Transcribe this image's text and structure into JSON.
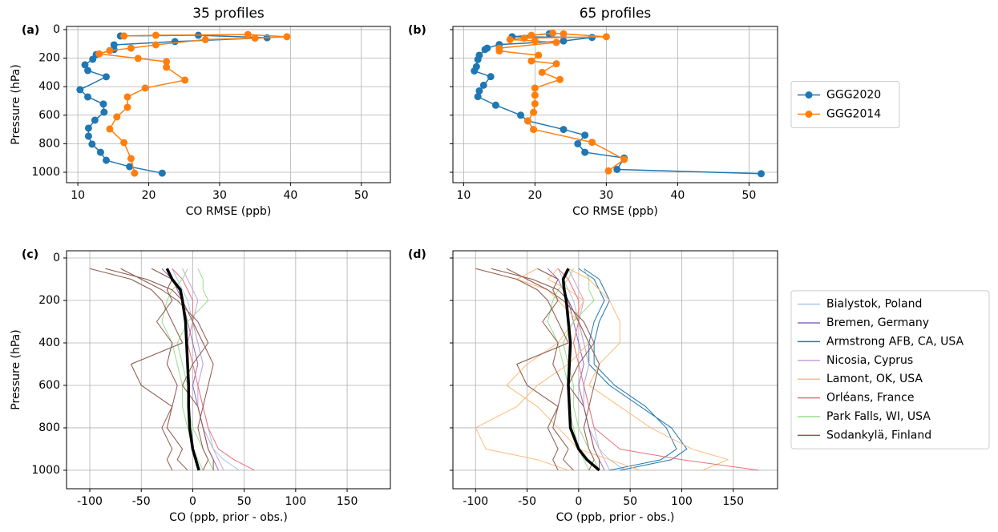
{
  "chart_data": [
    {
      "type": "line",
      "panel_label": "(a)",
      "title": "35 profiles",
      "x_label": "CO RMSE (ppb)",
      "y_label": "Pressure (hPa)",
      "xlim": [
        8.4,
        54.1
      ],
      "ylim": [
        1073,
        -22
      ],
      "xticks": [
        10,
        20,
        30,
        40,
        50
      ],
      "yticks": [
        0,
        200,
        400,
        600,
        800,
        1000
      ],
      "grid": true,
      "markers": true,
      "series": [
        {
          "name": "GGG2020",
          "color": "#1f77b4",
          "values": [
            16.0,
            27.0,
            36.7,
            23.7,
            15.1,
            15.1,
            12.6,
            12.1,
            11.0,
            11.4,
            14.0,
            10.3,
            11.4,
            13.6,
            13.7,
            12.4,
            11.5,
            11.5,
            12.0,
            13.2,
            14.0,
            17.3,
            21.9
          ],
          "pressure": [
            45,
            40,
            57,
            84,
            107,
            140,
            175,
            208,
            247,
            287,
            331,
            421,
            472,
            522,
            579,
            635,
            691,
            747,
            803,
            860,
            916,
            961,
            1006
          ]
        },
        {
          "name": "GGG2014",
          "color": "#ff7f0e",
          "values": [
            16.5,
            21.0,
            34.0,
            39.5,
            35.0,
            28.0,
            21.0,
            17.5,
            14.5,
            13.0,
            18.5,
            22.5,
            22.5,
            25.1,
            19.5,
            17.0,
            17.0,
            15.5,
            14.5,
            16.5,
            17.5,
            18.0
          ],
          "pressure": [
            45,
            40,
            35,
            50,
            60,
            70,
            107,
            130,
            147,
            170,
            202,
            225,
            264,
            354,
            410,
            472,
            545,
            612,
            697,
            792,
            904,
            1006
          ]
        }
      ]
    },
    {
      "type": "line",
      "panel_label": "(b)",
      "title": "65 profiles",
      "x_label": "CO RMSE (ppb)",
      "xlim": [
        8.5,
        54.0
      ],
      "ylim": [
        1073,
        -22
      ],
      "xticks": [
        10,
        20,
        30,
        40,
        50
      ],
      "yticks": [
        0,
        200,
        400,
        600,
        800,
        1000
      ],
      "show_ytick_labels": false,
      "grid": true,
      "markers": true,
      "legend": "outside right",
      "series": [
        {
          "name": "GGG2020",
          "color": "#1f77b4",
          "values": [
            22.0,
            16.8,
            28.0,
            24.0,
            15.0,
            13.3,
            13.0,
            12.2,
            12.0,
            11.8,
            11.5,
            13.8,
            12.8,
            12.2,
            12.0,
            14.5,
            18.0,
            19.0,
            24.0,
            27.0,
            26.0,
            27.0,
            32.5,
            31.5,
            51.7
          ],
          "pressure": [
            30,
            50,
            55,
            80,
            105,
            130,
            140,
            180,
            210,
            260,
            290,
            330,
            390,
            430,
            470,
            530,
            600,
            640,
            700,
            740,
            800,
            860,
            900,
            980,
            1010
          ]
        },
        {
          "name": "GGG2014",
          "color": "#ff7f0e",
          "values": [
            19.5,
            22.5,
            24.0,
            30.0,
            18.5,
            16.5,
            20.0,
            23.0,
            15.0,
            15.0,
            20.5,
            19.5,
            23.0,
            21.0,
            23.5,
            20.0,
            20.0,
            20.0,
            19.8,
            19.0,
            19.8,
            28.0,
            32.5,
            30.3
          ],
          "pressure": [
            40,
            25,
            30,
            50,
            60,
            70,
            80,
            90,
            130,
            150,
            180,
            220,
            240,
            300,
            350,
            410,
            460,
            520,
            580,
            640,
            700,
            790,
            910,
            990
          ]
        }
      ]
    },
    {
      "type": "profiles",
      "panel_label": "(c)",
      "x_label": "CO (ppb, prior - obs.)",
      "y_label": "Pressure (hPa)",
      "xlim": [
        -122.6,
        192.0
      ],
      "ylim": [
        1087,
        -34
      ],
      "xticks": [
        -100,
        -50,
        0,
        50,
        100,
        150
      ],
      "yticks": [
        0,
        200,
        400,
        600,
        800,
        1000
      ],
      "grid": true,
      "pressure": [
        50,
        100,
        150,
        200,
        300,
        400,
        500,
        600,
        700,
        800,
        900,
        950,
        1000
      ],
      "series": [
        {
          "name": "Bialystok, Poland",
          "color": "#a9c8e6",
          "profiles": [
            [
              -20,
              -15,
              -10,
              -5,
              0,
              5,
              10,
              5,
              10,
              15,
              20,
              30,
              45
            ]
          ]
        },
        {
          "name": "Bremen, Germany",
          "color": "#9467bd",
          "profiles": [
            [
              -30,
              -20,
              -15,
              -10,
              -5,
              0,
              5,
              0,
              5,
              10,
              15,
              20,
              25
            ]
          ]
        },
        {
          "name": "Nicosia, Cyprus",
          "color": "#c8a2d9",
          "profiles": [
            [
              -10,
              -5,
              0,
              5,
              0,
              5,
              10,
              5,
              5,
              10,
              20,
              25,
              30
            ]
          ]
        },
        {
          "name": "Orléans, France",
          "color": "#e8707a",
          "profiles": [
            [
              -20,
              -10,
              -5,
              0,
              0,
              -5,
              0,
              5,
              10,
              15,
              25,
              40,
              60
            ]
          ]
        },
        {
          "name": "Park Falls, WI, USA",
          "color": "#98df8a",
          "profiles": [
            [
              5,
              10,
              10,
              15,
              -5,
              -15,
              -10,
              -5,
              -5,
              0,
              10,
              15,
              20
            ],
            [
              -5,
              -10,
              -20,
              -25,
              -30,
              -20,
              -15,
              -10,
              -10,
              -5,
              0,
              5,
              10
            ]
          ]
        },
        {
          "name": "Sodankylä, Finland",
          "color": "#8c564b",
          "profiles": [
            [
              -100,
              -60,
              -40,
              -30,
              -20,
              -10,
              -60,
              -50,
              -20,
              -25,
              -10,
              -15,
              -5
            ],
            [
              -70,
              -50,
              -30,
              -15,
              5,
              15,
              0,
              -10,
              5,
              10,
              15,
              20,
              20
            ],
            [
              -40,
              -20,
              -25,
              -20,
              -35,
              -20,
              -25,
              -15,
              -20,
              -30,
              -20,
              -25,
              -20
            ],
            [
              -85,
              -45,
              -20,
              -10,
              0,
              10,
              20,
              15,
              10,
              5,
              10,
              15,
              10
            ]
          ]
        },
        {
          "color": "#000000",
          "line_width": 3.5,
          "profiles": [
            [
              -25,
              -20,
              -12,
              -10,
              -7,
              -6,
              -5,
              -4,
              -4,
              -3,
              0,
              3,
              6
            ]
          ]
        }
      ]
    },
    {
      "type": "profiles",
      "panel_label": "(d)",
      "x_label": "CO (ppb, prior - obs.)",
      "xlim": [
        -122.0,
        193.0
      ],
      "ylim": [
        1087,
        -34
      ],
      "xticks": [
        -100,
        -50,
        0,
        50,
        100,
        150
      ],
      "yticks": [
        0,
        200,
        400,
        600,
        800,
        1000
      ],
      "show_ytick_labels": false,
      "grid": true,
      "legend": "outside right",
      "pressure": [
        50,
        100,
        150,
        200,
        300,
        400,
        500,
        600,
        700,
        800,
        900,
        950,
        1000
      ],
      "series": [
        {
          "name": "Bialystok, Poland",
          "color": "#a9c8e6",
          "profiles": [
            [
              -20,
              -15,
              -10,
              -5,
              0,
              5,
              10,
              5,
              10,
              15,
              20,
              30,
              45
            ]
          ]
        },
        {
          "name": "Bremen, Germany",
          "color": "#9467bd",
          "profiles": [
            [
              -30,
              -20,
              -15,
              -10,
              -5,
              0,
              5,
              0,
              5,
              10,
              15,
              20,
              25
            ]
          ]
        },
        {
          "name": "Armstrong AFB, CA, USA",
          "color": "#1f77b4",
          "profiles": [
            [
              0,
              15,
              20,
              25,
              15,
              10,
              10,
              30,
              60,
              90,
              105,
              90,
              40
            ],
            [
              5,
              20,
              25,
              30,
              20,
              15,
              15,
              35,
              65,
              85,
              95,
              80,
              30
            ]
          ]
        },
        {
          "name": "Nicosia, Cyprus",
          "color": "#c8a2d9",
          "profiles": [
            [
              -10,
              -5,
              0,
              5,
              0,
              5,
              10,
              5,
              5,
              10,
              20,
              25,
              30
            ]
          ]
        },
        {
          "name": "Lamont, OK, USA",
          "color": "#ffbb78",
          "profiles": [
            [
              -40,
              -60,
              -30,
              -20,
              0,
              10,
              -10,
              -40,
              -60,
              -100,
              -90,
              -40,
              -10
            ],
            [
              -10,
              10,
              20,
              30,
              40,
              40,
              20,
              10,
              40,
              70,
              110,
              145,
              120
            ],
            [
              -20,
              -30,
              -10,
              5,
              -5,
              -20,
              -50,
              -70,
              -40,
              -20,
              0,
              30,
              60
            ]
          ]
        },
        {
          "name": "Orléans, France",
          "color": "#e8707a",
          "profiles": [
            [
              -20,
              -10,
              -5,
              0,
              0,
              -5,
              0,
              5,
              10,
              15,
              40,
              100,
              175
            ]
          ]
        },
        {
          "name": "Park Falls, WI, USA",
          "color": "#98df8a",
          "profiles": [
            [
              5,
              10,
              10,
              15,
              -5,
              -15,
              -10,
              -5,
              -5,
              0,
              10,
              15,
              20
            ],
            [
              -5,
              -10,
              -20,
              -25,
              -30,
              -20,
              -15,
              -10,
              -10,
              -5,
              0,
              5,
              10
            ]
          ]
        },
        {
          "name": "Sodankylä, Finland",
          "color": "#8c564b",
          "profiles": [
            [
              -100,
              -60,
              -40,
              -30,
              -20,
              -10,
              -60,
              -50,
              -20,
              -25,
              -10,
              -15,
              -5
            ],
            [
              -70,
              -50,
              -30,
              -15,
              5,
              15,
              0,
              -10,
              5,
              10,
              15,
              20,
              20
            ],
            [
              -40,
              -20,
              -25,
              -20,
              -35,
              -20,
              -25,
              -15,
              -20,
              -30,
              -20,
              -25,
              -20
            ],
            [
              -85,
              -45,
              -20,
              -10,
              0,
              10,
              20,
              15,
              10,
              5,
              10,
              15,
              10
            ]
          ]
        },
        {
          "color": "#000000",
          "line_width": 3.5,
          "profiles": [
            [
              -10,
              -15,
              -14,
              -12,
              -10,
              -8,
              -9,
              -10,
              -9,
              -8,
              0,
              8,
              20
            ]
          ]
        }
      ]
    }
  ]
}
